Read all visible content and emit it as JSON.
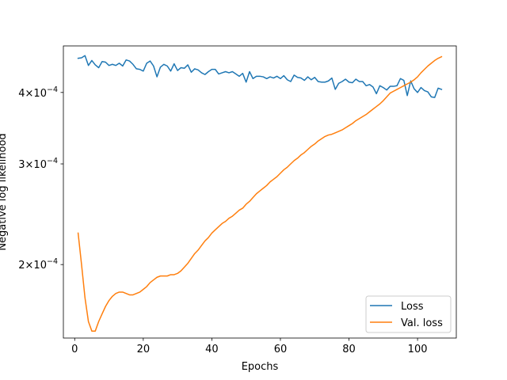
{
  "chart_data": {
    "type": "line",
    "title": "",
    "xlabel": "Epochs",
    "ylabel": "Negative log likelihood",
    "yscale": "log",
    "xlim": [
      -3.3,
      111.3
    ],
    "ylim": [
      0.00014876,
      0.0004825
    ],
    "xticks": [
      {
        "value": 0,
        "label": "0"
      },
      {
        "value": 20,
        "label": "20"
      },
      {
        "value": 40,
        "label": "40"
      },
      {
        "value": 60,
        "label": "60"
      },
      {
        "value": 80,
        "label": "80"
      },
      {
        "value": 100,
        "label": "100"
      }
    ],
    "yticks": [
      {
        "value": 0.0002,
        "base": "2",
        "exp": "−4"
      },
      {
        "value": 0.0003,
        "base": "3",
        "exp": "−4"
      },
      {
        "value": 0.0004,
        "base": "4",
        "exp": "−4"
      }
    ],
    "legend": {
      "position": "lower-right"
    },
    "colors": {
      "loss": "#1f77b4",
      "val_loss": "#ff7f0e",
      "axis": "#000000"
    },
    "series": [
      {
        "name": "Loss",
        "color": "#1f77b4",
        "x": [
          1,
          2,
          3,
          4,
          5,
          6,
          7,
          8,
          9,
          10,
          11,
          12,
          13,
          14,
          15,
          16,
          17,
          18,
          19,
          20,
          21,
          22,
          23,
          24,
          25,
          26,
          27,
          28,
          29,
          30,
          31,
          32,
          33,
          34,
          35,
          36,
          37,
          38,
          39,
          40,
          41,
          42,
          43,
          44,
          45,
          46,
          47,
          48,
          49,
          50,
          51,
          52,
          53,
          54,
          55,
          56,
          57,
          58,
          59,
          60,
          61,
          62,
          63,
          64,
          65,
          66,
          67,
          68,
          69,
          70,
          71,
          72,
          73,
          74,
          75,
          76,
          77,
          78,
          79,
          80,
          81,
          82,
          83,
          84,
          85,
          86,
          87,
          88,
          89,
          90,
          91,
          92,
          93,
          94,
          95,
          96,
          97,
          98,
          99,
          100,
          101,
          102,
          103,
          104,
          105,
          106,
          107
        ],
        "y": [
          0.000459,
          0.00046,
          0.000464,
          0.000446,
          0.000455,
          0.000447,
          0.000442,
          0.000453,
          0.000452,
          0.000446,
          0.000448,
          0.000446,
          0.00045,
          0.000445,
          0.000456,
          0.000454,
          0.000448,
          0.00044,
          0.000439,
          0.000436,
          0.00045,
          0.000454,
          0.000445,
          0.000426,
          0.000443,
          0.000448,
          0.000445,
          0.000436,
          0.000449,
          0.000437,
          0.000442,
          0.000441,
          0.000447,
          0.000434,
          0.00044,
          0.000438,
          0.000433,
          0.00043,
          0.000435,
          0.000439,
          0.000439,
          0.000431,
          0.000433,
          0.000435,
          0.000433,
          0.000435,
          0.000431,
          0.000427,
          0.000432,
          0.000417,
          0.000435,
          0.000423,
          0.000427,
          0.000427,
          0.000426,
          0.000423,
          0.000426,
          0.000424,
          0.000427,
          0.000423,
          0.000428,
          0.000421,
          0.000418,
          0.000429,
          0.000425,
          0.000424,
          0.00042,
          0.000426,
          0.000421,
          0.000425,
          0.000418,
          0.000417,
          0.000417,
          0.000419,
          0.000424,
          0.000405,
          0.000415,
          0.000418,
          0.000422,
          0.000417,
          0.000416,
          0.000422,
          0.000418,
          0.000418,
          0.000411,
          0.000413,
          0.000409,
          0.000398,
          0.000411,
          0.000408,
          0.000404,
          0.00041,
          0.00041,
          0.000411,
          0.000423,
          0.00042,
          0.000395,
          0.000419,
          0.000406,
          0.0004,
          0.000408,
          0.000403,
          0.000401,
          0.000393,
          0.000392,
          0.000407,
          0.000405
        ]
      },
      {
        "name": "Val. loss",
        "color": "#ff7f0e",
        "x": [
          1,
          2,
          3,
          4,
          5,
          6,
          7,
          8,
          9,
          10,
          11,
          12,
          13,
          14,
          15,
          16,
          17,
          18,
          19,
          20,
          21,
          22,
          23,
          24,
          25,
          26,
          27,
          28,
          29,
          30,
          31,
          32,
          33,
          34,
          35,
          36,
          37,
          38,
          39,
          40,
          41,
          42,
          43,
          44,
          45,
          46,
          47,
          48,
          49,
          50,
          51,
          52,
          53,
          54,
          55,
          56,
          57,
          58,
          59,
          60,
          61,
          62,
          63,
          64,
          65,
          66,
          67,
          68,
          69,
          70,
          71,
          72,
          73,
          74,
          75,
          76,
          77,
          78,
          79,
          80,
          81,
          82,
          83,
          84,
          85,
          86,
          87,
          88,
          89,
          90,
          91,
          92,
          93,
          94,
          95,
          96,
          97,
          98,
          99,
          100,
          101,
          102,
          103,
          104,
          105,
          106,
          107
        ],
        "y": [
          0.000227,
          0.0002,
          0.000175,
          0.000159,
          0.000153,
          0.000153,
          0.000159,
          0.000164,
          0.000169,
          0.000173,
          0.000176,
          0.000178,
          0.000179,
          0.000179,
          0.000178,
          0.000177,
          0.000177,
          0.000178,
          0.000179,
          0.000181,
          0.000183,
          0.000186,
          0.000188,
          0.00019,
          0.000191,
          0.000191,
          0.000191,
          0.000192,
          0.000192,
          0.000193,
          0.000195,
          0.000198,
          0.000201,
          0.000205,
          0.000209,
          0.000212,
          0.000216,
          0.00022,
          0.000223,
          0.000227,
          0.00023,
          0.000233,
          0.000236,
          0.000238,
          0.000241,
          0.000243,
          0.000246,
          0.000249,
          0.000251,
          0.000255,
          0.000258,
          0.000262,
          0.000266,
          0.000269,
          0.000272,
          0.000275,
          0.000279,
          0.000282,
          0.000285,
          0.000289,
          0.000293,
          0.000296,
          0.0003,
          0.000304,
          0.000307,
          0.000311,
          0.000314,
          0.000318,
          0.000322,
          0.000325,
          0.000329,
          0.000332,
          0.000335,
          0.000337,
          0.000338,
          0.00034,
          0.000342,
          0.000344,
          0.000347,
          0.00035,
          0.000353,
          0.000357,
          0.00036,
          0.000363,
          0.000366,
          0.00037,
          0.000374,
          0.000378,
          0.000382,
          0.000387,
          0.000393,
          0.000399,
          0.000402,
          0.000405,
          0.000408,
          0.000411,
          0.000414,
          0.000417,
          0.000421,
          0.000426,
          0.000433,
          0.000439,
          0.000445,
          0.00045,
          0.000455,
          0.000459,
          0.000462
        ]
      }
    ]
  }
}
